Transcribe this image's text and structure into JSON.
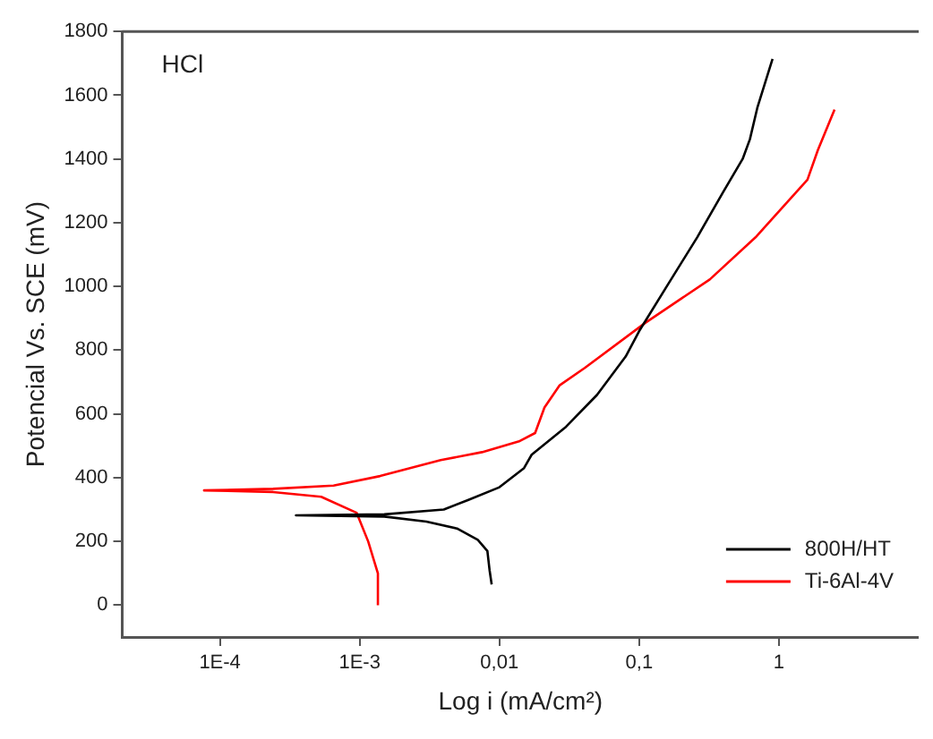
{
  "chart_data": {
    "type": "line",
    "xlabel": "Log i (mA/cm²)",
    "ylabel": "Potencial Vs. SCE (mV)",
    "annotations": [
      "HCl"
    ],
    "log": "x",
    "grid": false,
    "legend": "bottom right",
    "marker": "none",
    "line_style": "solid",
    "xlim": [
      2e-05,
      10
    ],
    "ylim": [
      -100,
      1800
    ],
    "xticks": [
      {
        "value": 0.0001,
        "label": "1E-4"
      },
      {
        "value": 0.001,
        "label": "1E-3"
      },
      {
        "value": 0.01,
        "label": "0,01"
      },
      {
        "value": 0.1,
        "label": "0,1"
      },
      {
        "value": 1,
        "label": "1"
      }
    ],
    "yticks": [
      0,
      200,
      400,
      600,
      800,
      1000,
      1200,
      1400,
      1600,
      1800
    ],
    "series": [
      {
        "name": "800H/HT",
        "color": "#000000",
        "x": [
          0.0088,
          0.0085,
          0.0082,
          0.007,
          0.005,
          0.003,
          0.0015,
          0.00035,
          0.0015,
          0.004,
          0.006,
          0.01,
          0.015,
          0.017,
          0.03,
          0.05,
          0.08,
          0.1,
          0.16,
          0.26,
          0.4,
          0.55,
          0.62,
          0.7,
          0.9
        ],
        "values": [
          65,
          110,
          170,
          205,
          240,
          262,
          278,
          282,
          285,
          300,
          330,
          370,
          430,
          472,
          560,
          660,
          780,
          860,
          1005,
          1154,
          1297,
          1400,
          1462,
          1560,
          1714
        ]
      },
      {
        "name": "Ti-6Al-4V",
        "color": "#ff0000",
        "x": [
          0.00135,
          0.00135,
          0.00115,
          0.00095,
          0.00053,
          0.00024,
          7.7e-05,
          0.00024,
          0.00065,
          0.0014,
          0.0038,
          0.0075,
          0.014,
          0.018,
          0.021,
          0.027,
          0.041,
          0.11,
          0.32,
          0.68,
          1.6,
          1.9,
          2.5
        ],
        "values": [
          0,
          100,
          200,
          290,
          340,
          355,
          360,
          365,
          375,
          405,
          455,
          480,
          515,
          540,
          620,
          690,
          745,
          885,
          1022,
          1154,
          1335,
          1428,
          1555
        ]
      }
    ]
  }
}
